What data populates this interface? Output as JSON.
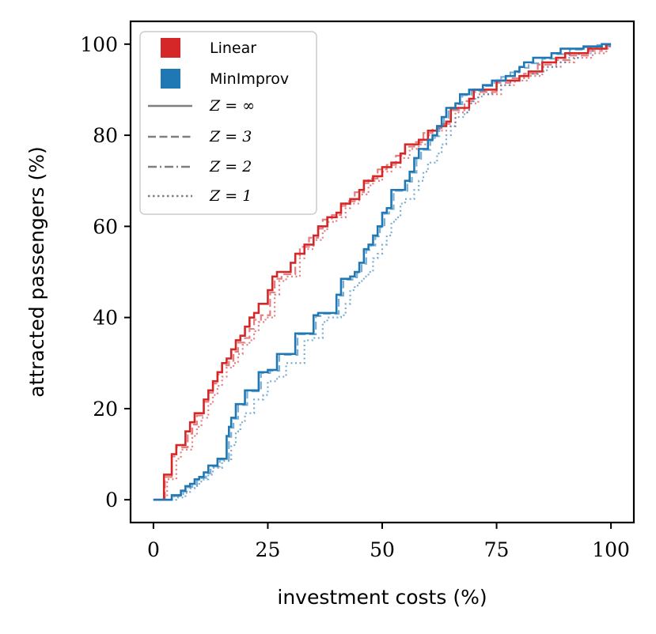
{
  "chart_data": {
    "type": "line",
    "title": "",
    "xlabel": "investment costs (%)",
    "ylabel": "attracted passengers (%)",
    "xlim": [
      -5,
      105
    ],
    "ylim": [
      -5,
      105
    ],
    "xticks": [
      0,
      25,
      50,
      75,
      100
    ],
    "yticks": [
      0,
      20,
      40,
      60,
      80,
      100
    ],
    "grid": false,
    "legend": {
      "placement": "top-left",
      "color_entries": [
        {
          "label": "Linear",
          "color": "#d62728"
        },
        {
          "label": "MinImprov",
          "color": "#1f77b4"
        }
      ],
      "style_entries": [
        {
          "label": "Z = ∞",
          "linestyle": "solid"
        },
        {
          "label": "Z = 3",
          "linestyle": "dashed"
        },
        {
          "label": "Z = 2",
          "linestyle": "dashdot"
        },
        {
          "label": "Z = 1",
          "linestyle": "dotted"
        }
      ]
    },
    "series": [
      {
        "name": "Linear",
        "line": "Z = ∞",
        "color": "#d62728",
        "linestyle": "solid",
        "step": true,
        "x": [
          0,
          2,
          2.3,
          4,
          5,
          6,
          7,
          8,
          9,
          10,
          11,
          12,
          13,
          14,
          15,
          16,
          17,
          18,
          19,
          20,
          21,
          22,
          23,
          25,
          26,
          27,
          30,
          31,
          33,
          35,
          36,
          38,
          40,
          41,
          43,
          45,
          46,
          48,
          50,
          52,
          54,
          55,
          56,
          58,
          60,
          62,
          64,
          65,
          67,
          69,
          70,
          72,
          75,
          77,
          80,
          82,
          85,
          88,
          90,
          93,
          95,
          97,
          99,
          100
        ],
        "y": [
          0,
          0,
          5.5,
          10,
          12,
          12,
          15,
          17,
          19,
          19,
          22,
          24,
          26,
          28,
          30,
          31,
          33,
          35,
          36,
          38,
          40,
          41,
          43,
          46,
          49,
          50,
          52,
          54,
          56,
          58,
          60,
          62,
          63,
          65,
          66,
          68,
          70,
          71,
          73,
          74,
          76,
          78,
          78,
          79,
          81,
          82,
          83,
          86,
          86,
          88,
          90,
          90,
          92,
          92,
          93,
          94,
          96,
          97,
          98,
          98,
          99,
          99,
          100,
          100
        ]
      },
      {
        "name": "Linear",
        "line": "Z = 3",
        "color": "#d62728",
        "linestyle": "dashed",
        "step": true,
        "x": [
          0,
          2,
          2.5,
          4,
          5,
          6,
          7.5,
          8.5,
          9.5,
          11,
          12,
          13,
          14,
          15,
          16.5,
          17.5,
          18.5,
          20,
          21,
          22,
          23.5,
          25.5,
          26.5,
          28,
          31,
          32,
          34,
          36,
          37,
          39,
          41,
          42,
          44,
          46,
          47,
          49,
          51,
          53,
          55,
          57,
          59,
          61,
          63,
          65,
          68,
          70,
          72,
          75,
          78,
          81,
          84,
          88,
          91,
          95,
          98,
          100
        ],
        "y": [
          0,
          0,
          5,
          9.5,
          11.5,
          11.5,
          14.5,
          16.5,
          18.5,
          21.5,
          23.5,
          25.5,
          27.5,
          29.5,
          30.5,
          32.5,
          34.5,
          35.5,
          37.5,
          39.5,
          40.5,
          45.5,
          48.5,
          49.5,
          53.5,
          55.5,
          57.5,
          59.5,
          61.5,
          62.5,
          64.5,
          65.5,
          67.5,
          69.5,
          70.5,
          72.5,
          73.5,
          75.5,
          77.5,
          78.5,
          80.5,
          81.5,
          82.5,
          85.5,
          87.5,
          89.5,
          89.5,
          91.5,
          92.5,
          93.5,
          95.5,
          96.5,
          97.5,
          98.5,
          99.5,
          99.5
        ]
      },
      {
        "name": "Linear",
        "line": "Z = 1",
        "color": "#d62728",
        "linestyle": "dotted",
        "step": true,
        "x": [
          0,
          2.5,
          3,
          5,
          6,
          7,
          8.5,
          9.5,
          10.5,
          12,
          13,
          14,
          15,
          16,
          17.5,
          18.5,
          19.5,
          21,
          22,
          23,
          24.5,
          26.5,
          27.5,
          29,
          32,
          33,
          35,
          37,
          38,
          40,
          42,
          43,
          45,
          47,
          48,
          50,
          52,
          54,
          56,
          58,
          60,
          62,
          64,
          66,
          69,
          71,
          73,
          76,
          79,
          82,
          85,
          89,
          92,
          96,
          99,
          100
        ],
        "y": [
          0,
          0,
          4.5,
          9,
          11,
          11,
          14,
          16,
          18,
          21,
          23,
          25,
          27,
          29,
          30,
          32,
          34,
          35,
          37,
          39,
          40,
          45,
          48,
          49,
          53,
          55,
          57,
          59,
          61,
          62,
          64,
          65,
          67,
          69,
          70,
          72,
          73,
          75,
          77,
          78,
          80,
          81,
          82,
          85,
          87,
          89,
          89,
          91,
          92,
          93,
          95,
          96,
          97,
          98,
          99,
          99
        ]
      },
      {
        "name": "MinImprov",
        "line": "Z = ∞",
        "color": "#1f77b4",
        "linestyle": "solid",
        "step": true,
        "x": [
          0,
          3,
          4,
          6,
          7,
          8,
          9,
          10,
          11,
          12,
          14,
          16,
          16.5,
          17,
          18,
          20,
          22,
          23,
          25,
          27,
          31,
          33,
          35,
          36,
          39,
          40,
          41,
          42,
          43,
          44,
          45,
          46,
          47,
          48,
          49,
          50,
          51,
          52,
          53,
          55,
          56,
          57,
          58,
          60,
          61,
          62,
          63,
          64,
          66,
          67,
          68,
          69,
          70,
          72,
          74,
          75,
          77,
          79,
          80,
          81,
          83,
          85,
          87,
          89,
          90,
          92,
          94,
          96,
          98,
          99,
          100
        ],
        "y": [
          0,
          0,
          1,
          2,
          3,
          3.5,
          4.5,
          5,
          6,
          7.5,
          9,
          14,
          16,
          18,
          21,
          24,
          24,
          28,
          28.5,
          32,
          36.5,
          36.5,
          40.5,
          41,
          41,
          45,
          48.5,
          48.5,
          49,
          50,
          52,
          55,
          56,
          58,
          60,
          63,
          64,
          68,
          68,
          70,
          72,
          75,
          77,
          79,
          80,
          82,
          84,
          86,
          87,
          89,
          89,
          90,
          90,
          91,
          92,
          92,
          93,
          94,
          95,
          96,
          97,
          97,
          98,
          99,
          99,
          99,
          99.5,
          99.5,
          100,
          100,
          100
        ]
      },
      {
        "name": "MinImprov",
        "line": "Z = 3",
        "color": "#1f77b4",
        "linestyle": "dashed",
        "step": true,
        "x": [
          0,
          3,
          4.5,
          6.5,
          7.5,
          8.5,
          9.5,
          10.5,
          11.5,
          12.5,
          14.5,
          16.5,
          17,
          17.5,
          18.5,
          20.5,
          22.5,
          23.5,
          25.5,
          27.5,
          31.5,
          33.5,
          35.5,
          36.5,
          39.5,
          40.5,
          41.5,
          42.5,
          43.5,
          44.5,
          45.5,
          46.5,
          47.5,
          48.5,
          49.5,
          50.5,
          51.5,
          52.5,
          53.5,
          55.5,
          56.5,
          57.5,
          58.5,
          60.5,
          61.5,
          62.5,
          63.5,
          64.5,
          66.5,
          67.5,
          68.5,
          69.5,
          70.5,
          72.5,
          74.5,
          76,
          78,
          80,
          82,
          85,
          88,
          91,
          94,
          97,
          100
        ],
        "y": [
          0,
          0,
          0.8,
          1.8,
          2.8,
          3.3,
          4.3,
          4.8,
          5.8,
          7.3,
          8.8,
          13.8,
          15.8,
          17.8,
          20.8,
          23.8,
          23.8,
          27.8,
          28.3,
          31.8,
          36.3,
          36.3,
          40.3,
          40.8,
          40.8,
          44.8,
          48.3,
          48.3,
          48.8,
          49.8,
          51.8,
          54.8,
          55.8,
          57.8,
          59.8,
          62.8,
          63.8,
          67.8,
          67.8,
          69.8,
          71.8,
          74.8,
          76.8,
          78.8,
          79.8,
          81.8,
          83.8,
          85.8,
          86.8,
          88.8,
          88.8,
          89.8,
          89.8,
          90.8,
          91.8,
          92.8,
          93.8,
          94.8,
          95.8,
          96.8,
          97.8,
          98.8,
          99.3,
          99.8,
          99.8
        ]
      },
      {
        "name": "MinImprov",
        "line": "Z = 1",
        "color": "#1f77b4",
        "linestyle": "dotted",
        "step": true,
        "x": [
          0,
          3.5,
          5,
          7,
          8,
          9,
          10,
          11,
          12,
          13,
          15,
          17,
          18,
          19,
          20,
          22,
          24,
          25,
          27,
          29,
          33,
          35,
          37,
          38,
          41,
          42,
          43,
          44,
          45,
          46,
          47,
          48,
          49,
          50,
          51,
          52,
          53,
          54,
          55,
          57,
          58,
          59,
          60,
          62,
          63,
          64,
          65,
          66,
          68,
          69,
          70,
          71,
          72,
          74,
          76,
          78,
          80,
          82,
          84,
          86,
          88,
          90,
          93,
          96,
          98,
          100
        ],
        "y": [
          0,
          0,
          0.5,
          1.5,
          2.5,
          3,
          4,
          4.5,
          5.5,
          7,
          8.5,
          12,
          15,
          17,
          19,
          22,
          23,
          26,
          27,
          30,
          35,
          35.5,
          39,
          40,
          40.5,
          43,
          46,
          47,
          48,
          49,
          50,
          53,
          54,
          56,
          58,
          61,
          62,
          65,
          66,
          68,
          70,
          72,
          74,
          76,
          78,
          80,
          82,
          84,
          85,
          87,
          88,
          88.5,
          89,
          90,
          91,
          92,
          93,
          93.5,
          94,
          95,
          96,
          97,
          98,
          99,
          99.5,
          99.5
        ]
      }
    ]
  }
}
